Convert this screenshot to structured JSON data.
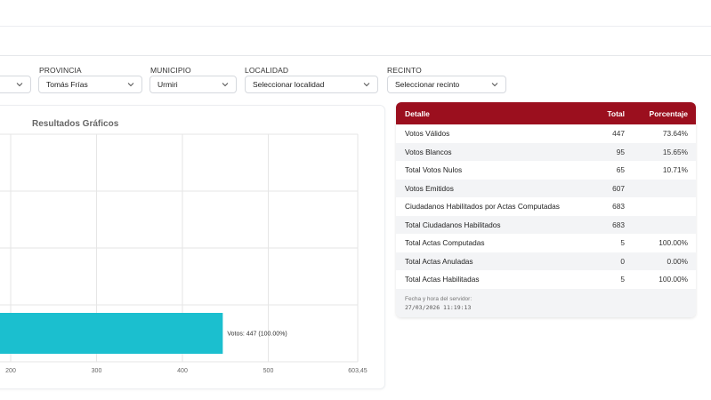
{
  "filters": {
    "provincia": {
      "label": "PROVINCIA",
      "value": "Tomás Frías"
    },
    "municipio": {
      "label": "MUNICIPIO",
      "value": "Urmiri"
    },
    "localidad": {
      "label": "LOCALIDAD",
      "placeholder": "Seleccionar localidad"
    },
    "recinto": {
      "label": "RECINTO",
      "placeholder": "Seleccionar recinto"
    }
  },
  "chart_data": {
    "type": "bar",
    "orientation": "horizontal",
    "title": "Resultados Gráficos",
    "categories": [
      "Votos"
    ],
    "values": [
      447
    ],
    "data_labels": [
      "Votos: 447 (100.00%)"
    ],
    "x_ticks": [
      "200",
      "300",
      "400",
      "500",
      "603,45"
    ],
    "xlim_visible": [
      200,
      603.45
    ],
    "grid": true,
    "bar_color": "#1bbfcf"
  },
  "table": {
    "headers": {
      "detalle": "Detalle",
      "total": "Total",
      "porcentaje": "Porcentaje"
    },
    "rows": [
      {
        "detalle": "Votos Válidos",
        "total": "447",
        "porcentaje": "73.64%"
      },
      {
        "detalle": "Votos Blancos",
        "total": "95",
        "porcentaje": "15.65%"
      },
      {
        "detalle": "Total Votos Nulos",
        "total": "65",
        "porcentaje": "10.71%"
      },
      {
        "detalle": "Votos Emitidos",
        "total": "607",
        "porcentaje": ""
      },
      {
        "detalle": "Ciudadanos Habilitados por Actas Computadas",
        "total": "683",
        "porcentaje": ""
      },
      {
        "detalle": "Total Ciudadanos Habilitados",
        "total": "683",
        "porcentaje": ""
      },
      {
        "detalle": "Total Actas Computadas",
        "total": "5",
        "porcentaje": "100.00%"
      },
      {
        "detalle": "Total Actas Anuladas",
        "total": "0",
        "porcentaje": "0.00%"
      },
      {
        "detalle": "Total Actas Habilitadas",
        "total": "5",
        "porcentaje": "100.00%"
      }
    ],
    "footer_label": "Fecha y hora del servidor:",
    "footer_value": "27/03/2026 11:19:13"
  },
  "colors": {
    "header": "#9b0f1e",
    "bar": "#1bbfcf"
  }
}
